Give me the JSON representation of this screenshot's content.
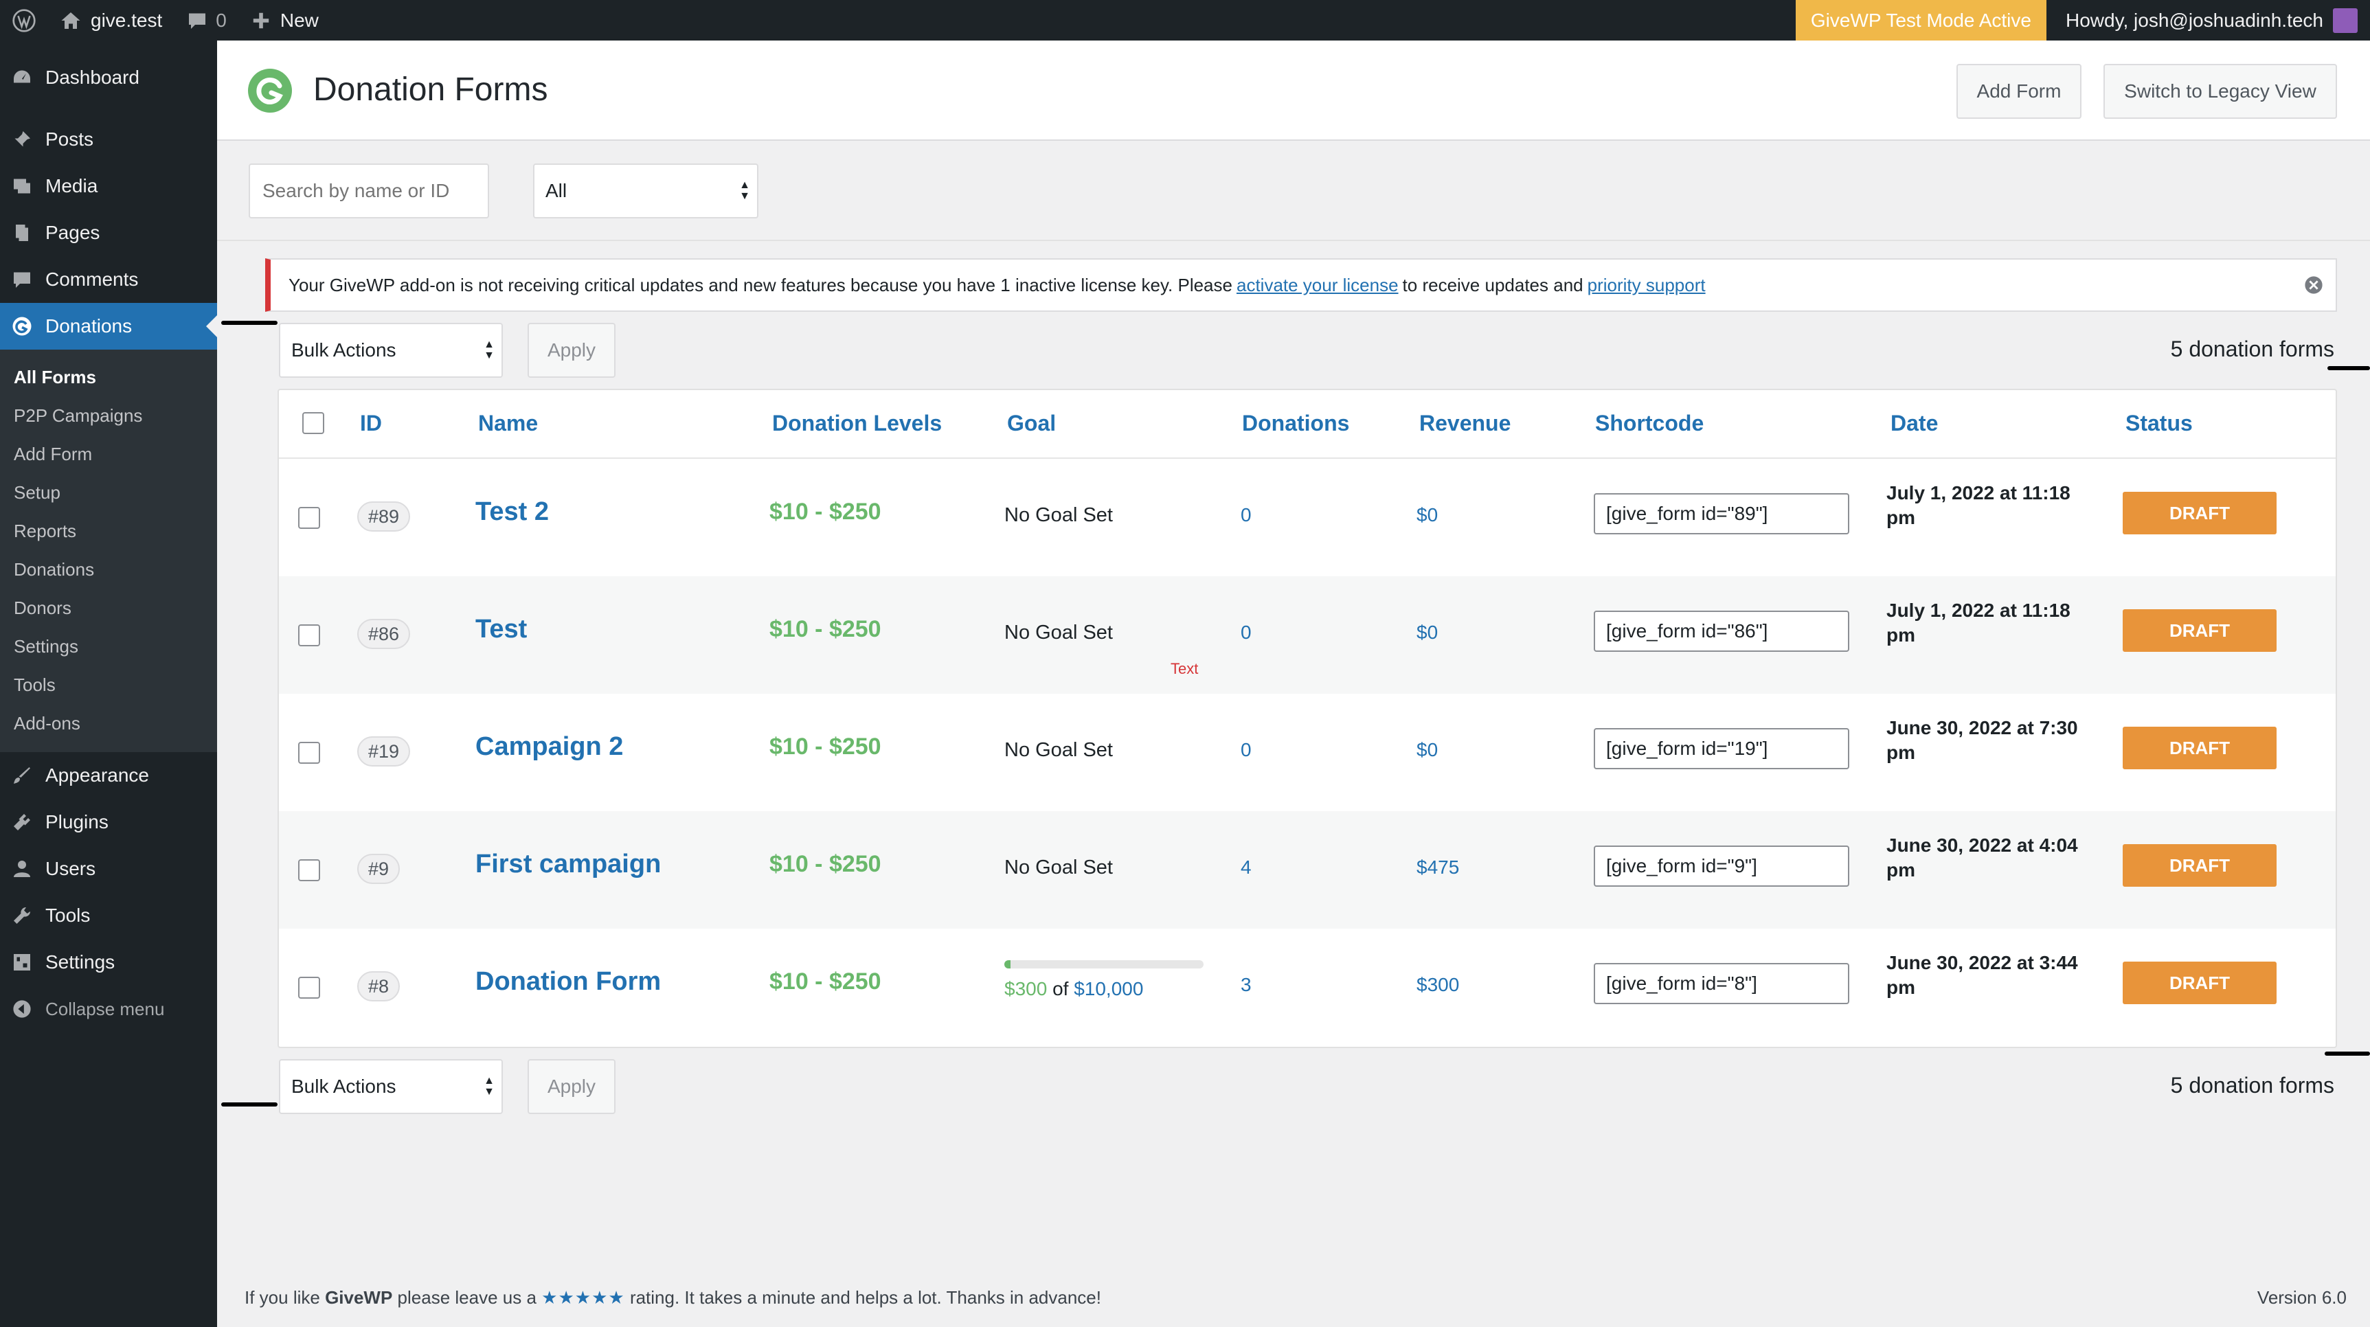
{
  "admin_bar": {
    "site_name": "give.test",
    "comments_count": "0",
    "new_label": "New",
    "test_mode": "GiveWP Test Mode Active",
    "howdy": "Howdy, josh@joshuadinh.tech"
  },
  "sidebar": {
    "items_top": [
      {
        "label": "Dashboard",
        "icon": "dashboard-icon"
      },
      {
        "label": "Posts",
        "icon": "pin-icon"
      },
      {
        "label": "Media",
        "icon": "media-icon"
      },
      {
        "label": "Pages",
        "icon": "pages-icon"
      },
      {
        "label": "Comments",
        "icon": "comment-icon"
      },
      {
        "label": "Donations",
        "icon": "give-icon"
      }
    ],
    "submenu": [
      "All Forms",
      "P2P Campaigns",
      "Add Form",
      "Setup",
      "Reports",
      "Donations",
      "Donors",
      "Settings",
      "Tools",
      "Add-ons"
    ],
    "items_bottom": [
      {
        "label": "Appearance",
        "icon": "brush-icon"
      },
      {
        "label": "Plugins",
        "icon": "plugin-icon"
      },
      {
        "label": "Users",
        "icon": "user-icon"
      },
      {
        "label": "Tools",
        "icon": "wrench-icon"
      },
      {
        "label": "Settings",
        "icon": "settings-icon"
      }
    ],
    "collapse": "Collapse menu"
  },
  "header": {
    "title": "Donation Forms",
    "add_form": "Add Form",
    "legacy_view": "Switch to Legacy View"
  },
  "filters": {
    "search_placeholder": "Search by name or ID",
    "status_value": "All"
  },
  "notice": {
    "text_before": "Your GiveWP add-on is not receiving critical updates and new features because you have 1 inactive license key. Please",
    "link1": "activate your license",
    "text_middle": "to receive updates and",
    "link2": "priority support"
  },
  "bulk": {
    "label": "Bulk Actions",
    "apply": "Apply",
    "count": "5 donation forms"
  },
  "table": {
    "headers": {
      "id": "ID",
      "name": "Name",
      "levels": "Donation Levels",
      "goal": "Goal",
      "donations": "Donations",
      "revenue": "Revenue",
      "shortcode": "Shortcode",
      "date": "Date",
      "status": "Status"
    },
    "rows": [
      {
        "id": "89",
        "name": "Test 2",
        "levels": "$10 - $250",
        "goal": "No Goal Set",
        "donations": "0",
        "revenue": "$0",
        "shortcode": "[give_form id=\"89\"]",
        "date": "July 1, 2022 at 11:18 pm",
        "status": "DRAFT"
      },
      {
        "id": "86",
        "name": "Test",
        "levels": "$10 - $250",
        "goal": "No Goal Set",
        "donations": "0",
        "revenue": "$0",
        "shortcode": "[give_form id=\"86\"]",
        "date": "July 1, 2022 at 11:18 pm",
        "status": "DRAFT",
        "note": "Text"
      },
      {
        "id": "19",
        "name": "Campaign 2",
        "levels": "$10 - $250",
        "goal": "No Goal Set",
        "donations": "0",
        "revenue": "$0",
        "shortcode": "[give_form id=\"19\"]",
        "date": "June 30, 2022 at 7:30 pm",
        "status": "DRAFT"
      },
      {
        "id": "9",
        "name": "First campaign",
        "levels": "$10 - $250",
        "goal": "No Goal Set",
        "donations": "4",
        "revenue": "$475",
        "shortcode": "[give_form id=\"9\"]",
        "date": "June 30, 2022 at 4:04 pm",
        "status": "DRAFT"
      },
      {
        "id": "8",
        "name": "Donation Form",
        "levels": "$10 - $250",
        "goal_raised": "$300",
        "goal_of": "of",
        "goal_target": "$10,000",
        "goal_fraction": 0.03,
        "donations": "3",
        "revenue": "$300",
        "shortcode": "[give_form id=\"8\"]",
        "date": "June 30, 2022 at 3:44 pm",
        "status": "DRAFT"
      }
    ]
  },
  "footer": {
    "before": "If you like",
    "brand": "GiveWP",
    "middle": "please leave us a",
    "stars": "★★★★★",
    "after": "rating. It takes a minute and helps a lot. Thanks in advance!",
    "version": "Version 6.0"
  },
  "colors": {
    "admin_dark": "#1d2327",
    "accent_blue": "#2271b1",
    "give_green": "#69b86b",
    "draft_orange": "#e8943a",
    "test_mode_yellow": "#f0b849",
    "notice_red": "#d63638"
  }
}
